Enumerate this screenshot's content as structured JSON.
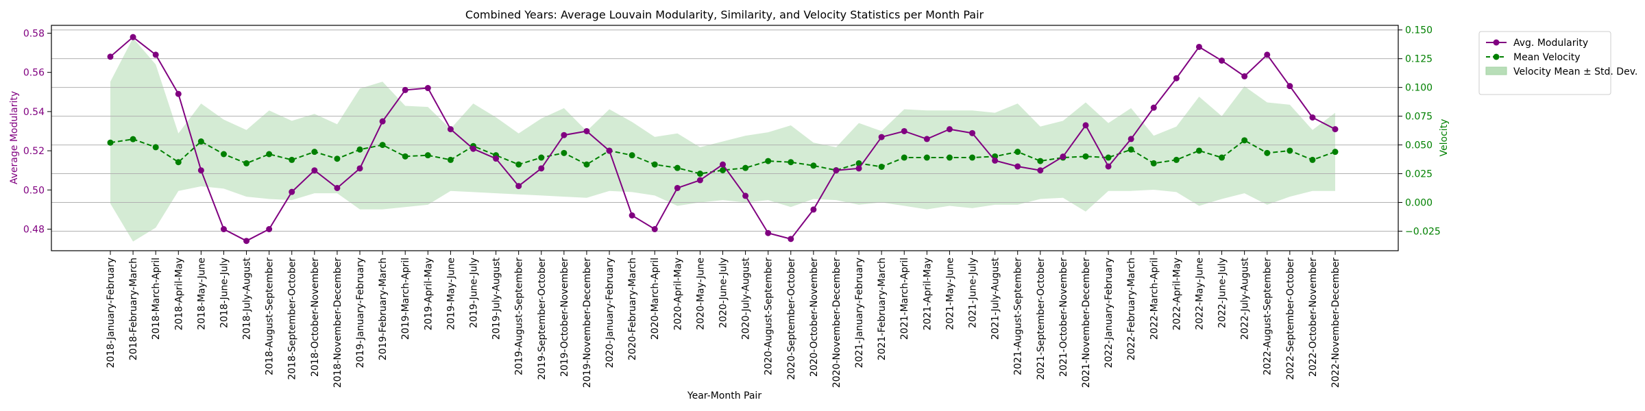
{
  "chart_data": {
    "type": "line",
    "title": "Combined Years: Average Louvain Modularity, Similarity, and Velocity Statistics per Month Pair",
    "xlabel": "Year-Month Pair",
    "ylabel_left": "Average Modularity",
    "ylabel_right": "Velocity",
    "colors": {
      "modularity": "#800080",
      "velocity": "#008000",
      "band": "#b8deb8",
      "grid": "#b0b0b0"
    },
    "y_left": {
      "lim": [
        0.469,
        0.584
      ],
      "ticks": [
        0.48,
        0.5,
        0.52,
        0.54,
        0.56,
        0.58
      ],
      "tick_labels": [
        "0.48",
        "0.50",
        "0.52",
        "0.54",
        "0.56",
        "0.58"
      ]
    },
    "y_right": {
      "lim": [
        -0.042,
        0.154
      ],
      "ticks": [
        -0.025,
        0.0,
        0.025,
        0.05,
        0.075,
        0.1,
        0.125,
        0.15
      ],
      "tick_labels": [
        "−0.025",
        "0.000",
        "0.025",
        "0.050",
        "0.075",
        "0.100",
        "0.125",
        "0.150"
      ]
    },
    "grid": "horizontal lines at right-axis ticks",
    "legend": {
      "placement": "outside top-right",
      "entries": [
        "Avg. Modularity",
        "Mean Velocity",
        "Velocity Mean ± Std. Dev."
      ]
    },
    "categories": [
      "2018-January-February",
      "2018-February-March",
      "2018-March-April",
      "2018-April-May",
      "2018-May-June",
      "2018-June-July",
      "2018-July-August",
      "2018-August-September",
      "2018-September-October",
      "2018-October-November",
      "2018-November-December",
      "2019-January-February",
      "2019-February-March",
      "2019-March-April",
      "2019-April-May",
      "2019-May-June",
      "2019-June-July",
      "2019-July-August",
      "2019-August-September",
      "2019-September-October",
      "2019-October-November",
      "2019-November-December",
      "2020-January-February",
      "2020-February-March",
      "2020-March-April",
      "2020-April-May",
      "2020-May-June",
      "2020-June-July",
      "2020-July-August",
      "2020-August-September",
      "2020-September-October",
      "2020-October-November",
      "2020-November-December",
      "2021-January-February",
      "2021-February-March",
      "2021-March-April",
      "2021-April-May",
      "2021-May-June",
      "2021-June-July",
      "2021-July-August",
      "2021-August-September",
      "2021-September-October",
      "2021-October-November",
      "2021-November-December",
      "2022-January-February",
      "2022-February-March",
      "2022-March-April",
      "2022-April-May",
      "2022-May-June",
      "2022-June-July",
      "2022-July-August",
      "2022-August-September",
      "2022-September-October",
      "2022-October-November",
      "2022-November-December"
    ],
    "series": [
      {
        "name": "Avg. Modularity",
        "axis": "left",
        "style": "solid, circle markers",
        "values": [
          0.568,
          0.578,
          0.569,
          0.549,
          0.51,
          0.48,
          0.474,
          0.48,
          0.499,
          0.51,
          0.501,
          0.511,
          0.535,
          0.551,
          0.552,
          0.531,
          0.521,
          0.516,
          0.502,
          0.511,
          0.528,
          0.53,
          0.52,
          0.487,
          0.48,
          0.501,
          0.505,
          0.513,
          0.497,
          0.478,
          0.475,
          0.49,
          0.51,
          0.511,
          0.527,
          0.53,
          0.526,
          0.531,
          0.529,
          0.515,
          0.512,
          0.51,
          0.517,
          0.533,
          0.512,
          0.526,
          0.542,
          0.557,
          0.573,
          0.566,
          0.558,
          0.569,
          0.553,
          0.537,
          0.531
        ]
      },
      {
        "name": "Mean Velocity",
        "axis": "right",
        "style": "dashed, circle markers",
        "values": [
          0.052,
          0.055,
          0.048,
          0.035,
          0.053,
          0.042,
          0.034,
          0.042,
          0.037,
          0.044,
          0.038,
          0.046,
          0.05,
          0.04,
          0.041,
          0.037,
          0.049,
          0.041,
          0.033,
          0.039,
          0.043,
          0.033,
          0.045,
          0.041,
          0.033,
          0.03,
          0.025,
          0.028,
          0.03,
          0.036,
          0.035,
          0.032,
          0.028,
          0.034,
          0.031,
          0.039,
          0.039,
          0.039,
          0.039,
          0.04,
          0.044,
          0.036,
          0.039,
          0.04,
          0.039,
          0.046,
          0.034,
          0.037,
          0.045,
          0.039,
          0.054,
          0.043,
          0.045,
          0.037,
          0.044
        ]
      },
      {
        "name": "Velocity Mean ± Std. Dev.",
        "axis": "right",
        "style": "filled band",
        "lower": [
          -0.001,
          -0.034,
          -0.022,
          0.01,
          0.014,
          0.012,
          0.005,
          0.003,
          0.002,
          0.008,
          0.008,
          -0.006,
          -0.006,
          -0.004,
          -0.002,
          0.01,
          0.009,
          0.008,
          0.007,
          0.006,
          0.005,
          0.004,
          0.01,
          0.009,
          0.006,
          -0.003,
          0.0,
          0.002,
          0.0,
          0.002,
          -0.004,
          0.003,
          0.002,
          -0.002,
          0.0,
          -0.003,
          -0.006,
          -0.003,
          -0.005,
          -0.002,
          -0.002,
          0.003,
          0.004,
          -0.008,
          0.01,
          0.01,
          0.011,
          0.009,
          -0.003,
          0.003,
          0.008,
          -0.002,
          0.005,
          0.01,
          0.01
        ],
        "upper": [
          0.105,
          0.143,
          0.12,
          0.06,
          0.086,
          0.072,
          0.063,
          0.08,
          0.071,
          0.077,
          0.068,
          0.099,
          0.105,
          0.084,
          0.083,
          0.064,
          0.086,
          0.074,
          0.06,
          0.073,
          0.082,
          0.062,
          0.081,
          0.07,
          0.057,
          0.06,
          0.048,
          0.053,
          0.058,
          0.061,
          0.067,
          0.052,
          0.048,
          0.069,
          0.062,
          0.081,
          0.08,
          0.08,
          0.08,
          0.078,
          0.086,
          0.066,
          0.071,
          0.087,
          0.069,
          0.082,
          0.058,
          0.066,
          0.092,
          0.075,
          0.101,
          0.087,
          0.085,
          0.063,
          0.078
        ]
      }
    ]
  }
}
